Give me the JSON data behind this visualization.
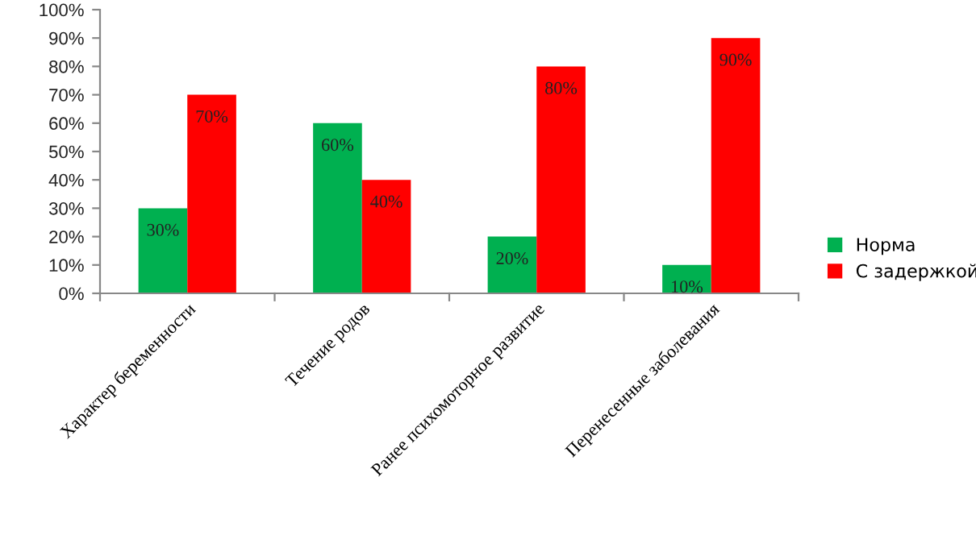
{
  "chart_data": {
    "type": "bar",
    "categories": [
      "Характер беременности",
      "Течение родов",
      "Ранее психомоторное развитие",
      "Перенесенные заболевания"
    ],
    "series": [
      {
        "name": "Норма",
        "color": "#00b050",
        "values": [
          30,
          60,
          20,
          10
        ],
        "value_labels": [
          "30%",
          "60%",
          "20%",
          "10%"
        ]
      },
      {
        "name": "С задержкой",
        "color": "#ff0000",
        "values": [
          70,
          40,
          80,
          90
        ],
        "value_labels": [
          "70%",
          "40%",
          "80%",
          "90%"
        ]
      }
    ],
    "ylim": [
      0,
      100
    ],
    "yticks": [
      {
        "value": 0,
        "label": "0%"
      },
      {
        "value": 10,
        "label": "10%"
      },
      {
        "value": 20,
        "label": "20%"
      },
      {
        "value": 30,
        "label": "30%"
      },
      {
        "value": 40,
        "label": "40%"
      },
      {
        "value": 50,
        "label": "50%"
      },
      {
        "value": 60,
        "label": "60%"
      },
      {
        "value": 70,
        "label": "70%"
      },
      {
        "value": 80,
        "label": "80%"
      },
      {
        "value": 90,
        "label": "90%"
      },
      {
        "value": 100,
        "label": "100%"
      }
    ],
    "grid": false,
    "legend": "right"
  }
}
